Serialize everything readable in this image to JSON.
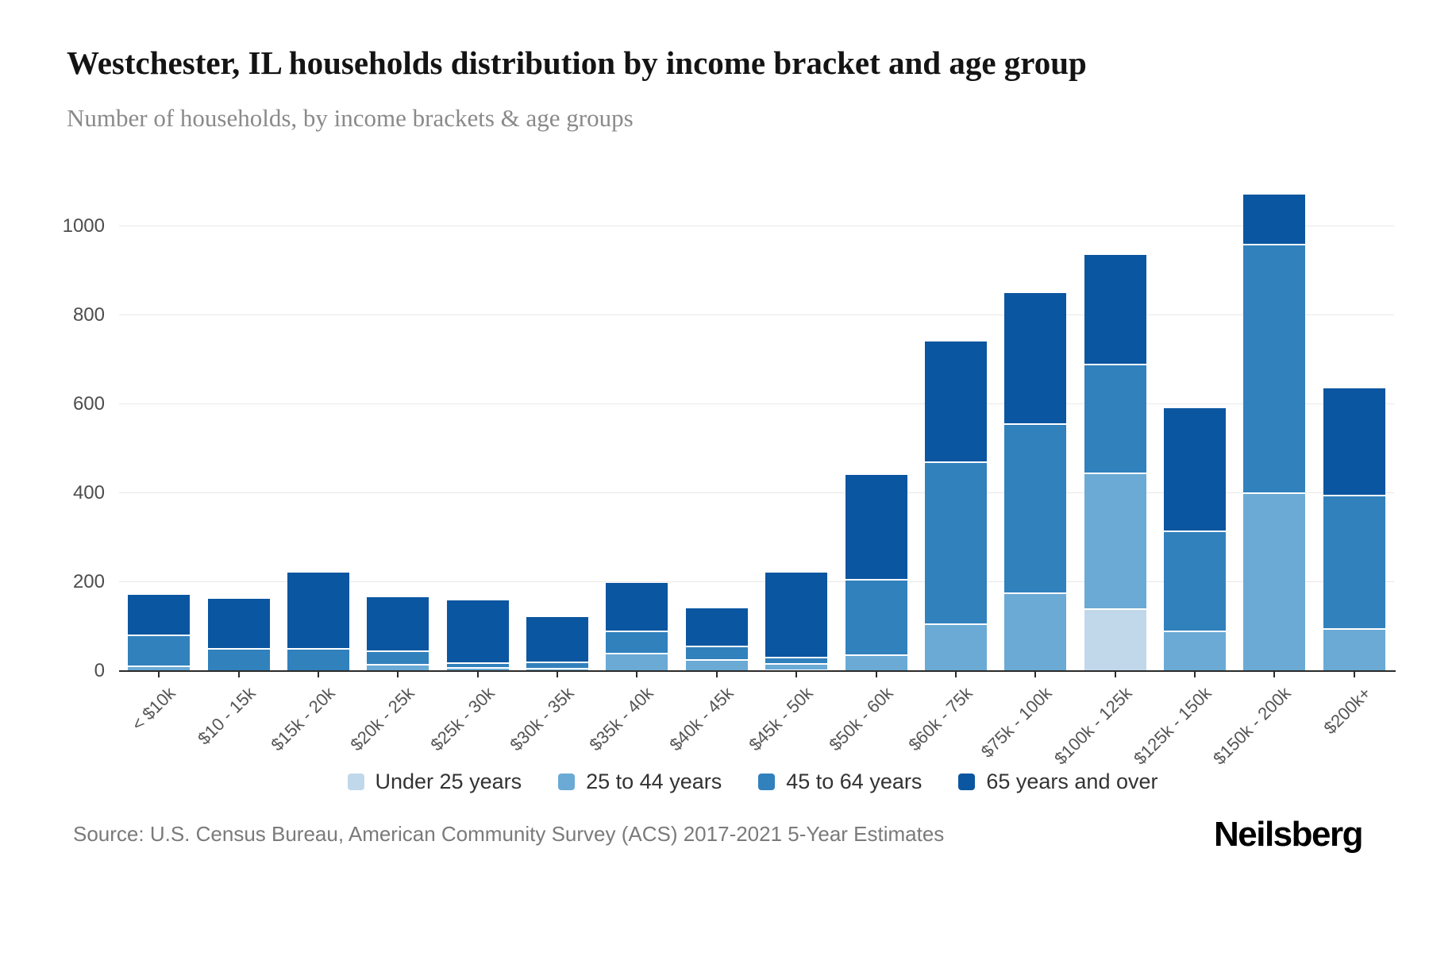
{
  "header": {
    "title": "Westchester, IL households distribution by income bracket and age group",
    "subtitle": "Number of households, by income brackets & age groups"
  },
  "chart_data": {
    "type": "bar",
    "stacked": true,
    "title": "Westchester, IL households distribution by income bracket and age group",
    "xlabel": "",
    "ylabel": "Number of households",
    "ylim": [
      0,
      1128
    ],
    "y_ticks": [
      0,
      200,
      400,
      600,
      800,
      1000
    ],
    "grid": "horizontal",
    "legend_position": "bottom-center",
    "categories": [
      "< $10k",
      "$10 - 15k",
      "$15k - 20k",
      "$20k - 25k",
      "$25k - 30k",
      "$30k - 35k",
      "$35k - 40k",
      "$40k - 45k",
      "$45k - 50k",
      "$50k - 60k",
      "$60k - 75k",
      "$75k - 100k",
      "$100k - 125k",
      "$125k - 150k",
      "$150k - 200k",
      "$200k+"
    ],
    "series": [
      {
        "name": "Under 25 years",
        "color": "#c1d8eb",
        "values": [
          0,
          0,
          0,
          0,
          0,
          0,
          0,
          0,
          0,
          0,
          0,
          0,
          140,
          0,
          0,
          0
        ]
      },
      {
        "name": "25 to 44 years",
        "color": "#6aaad5",
        "values": [
          10,
          0,
          0,
          15,
          8,
          5,
          40,
          25,
          15,
          35,
          105,
          175,
          305,
          90,
          400,
          95
        ]
      },
      {
        "name": "45 to 64 years",
        "color": "#3181bd",
        "values": [
          70,
          50,
          50,
          30,
          10,
          15,
          50,
          30,
          15,
          170,
          365,
          380,
          245,
          225,
          560,
          300
        ]
      },
      {
        "name": "65 years and over",
        "color": "#0b56a0",
        "values": [
          90,
          110,
          170,
          120,
          140,
          100,
          107,
          85,
          190,
          235,
          270,
          295,
          245,
          275,
          110,
          240
        ]
      }
    ],
    "totals": [
      170,
      160,
      220,
      165,
      158,
      120,
      197,
      140,
      220,
      440,
      740,
      850,
      935,
      590,
      1070,
      635
    ]
  },
  "footer": {
    "source": "Source: U.S. Census Bureau, American Community Survey (ACS) 2017-2021 5-Year Estimates",
    "brand": "Neilsberg"
  }
}
